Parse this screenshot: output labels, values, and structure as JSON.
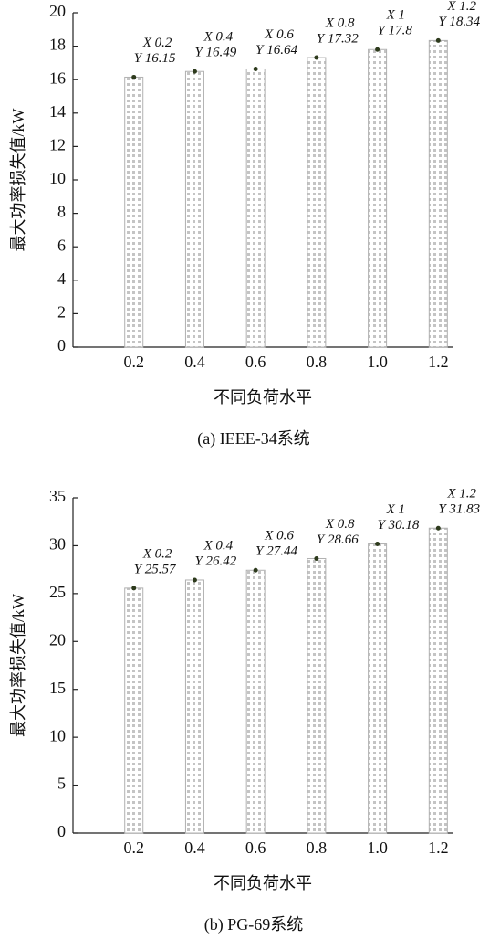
{
  "chart_data": [
    {
      "type": "bar",
      "caption": "(a) IEEE-34系统",
      "xlabel": "不同负荷水平",
      "ylabel": "最大功率损失值/kW",
      "categories": [
        "0.2",
        "0.4",
        "0.6",
        "0.8",
        "1.0",
        "1.2"
      ],
      "values": [
        16.15,
        16.49,
        16.64,
        17.32,
        17.8,
        18.34
      ],
      "point_labels": [
        "X 0.2",
        "X 0.4",
        "X 0.6",
        "X 0.8",
        "X 1",
        "X 1.2"
      ],
      "value_labels": [
        "Y 16.15",
        "Y 16.49",
        "Y 16.64",
        "Y 17.32",
        "Y 17.8",
        "Y 18.34"
      ],
      "ylim": [
        0,
        20
      ],
      "yticks": [
        0,
        2,
        4,
        6,
        8,
        10,
        12,
        14,
        16,
        18,
        20
      ],
      "color": "#b0b0b0",
      "marker_color": "#2d3a1c"
    },
    {
      "type": "bar",
      "caption": "(b) PG-69系统",
      "xlabel": "不同负荷水平",
      "ylabel": "最大功率损失值/kW",
      "categories": [
        "0.2",
        "0.4",
        "0.6",
        "0.8",
        "1.0",
        "1.2"
      ],
      "values": [
        25.57,
        26.42,
        27.44,
        28.66,
        30.18,
        31.83
      ],
      "point_labels": [
        "X 0.2",
        "X 0.4",
        "X 0.6",
        "X 0.8",
        "X 1",
        "X 1.2"
      ],
      "value_labels": [
        "Y 25.57",
        "Y 26.42",
        "Y 27.44",
        "Y 28.66",
        "Y 30.18",
        "Y 31.83"
      ],
      "ylim": [
        0,
        35
      ],
      "yticks": [
        0,
        5,
        10,
        15,
        20,
        25,
        30,
        35
      ],
      "color": "#b0b0b0",
      "marker_color": "#2d3a1c"
    }
  ]
}
